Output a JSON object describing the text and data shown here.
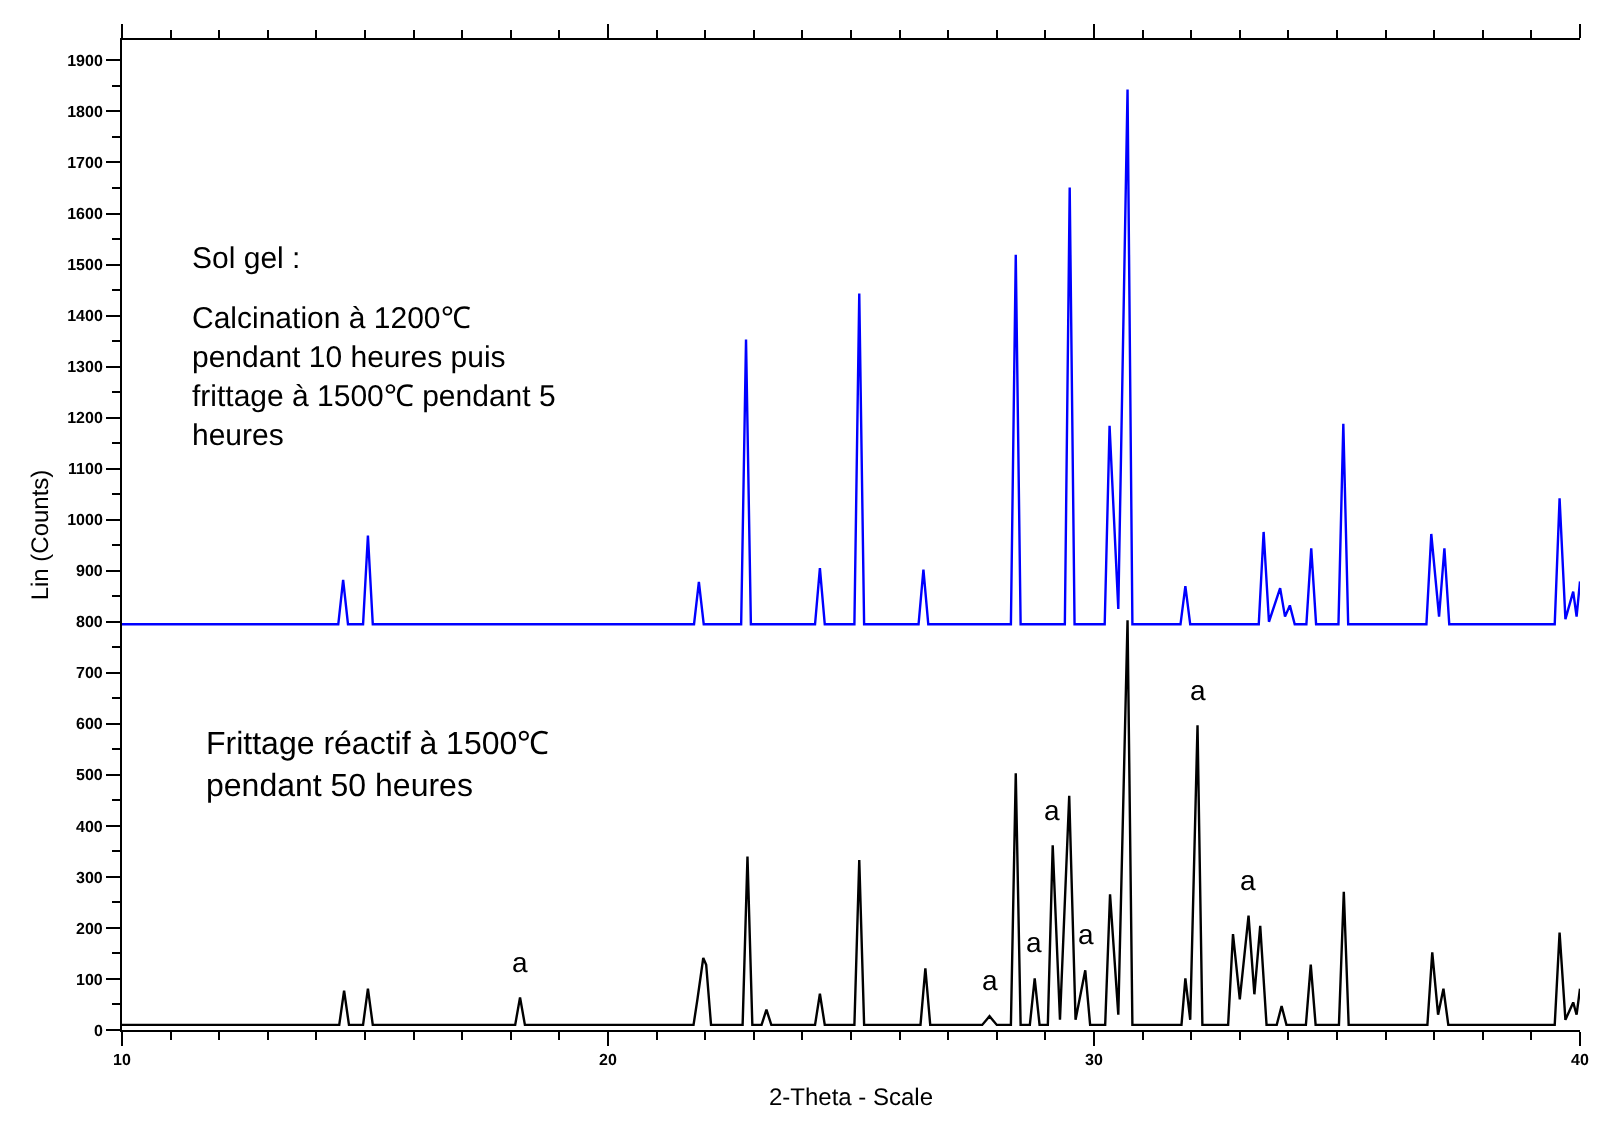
{
  "chart_data": {
    "type": "line",
    "xlabel": "2-Theta - Scale",
    "ylabel": "Lin (Counts)",
    "xlim": [
      10,
      40
    ],
    "ylim": [
      0,
      1940
    ],
    "xticks": [
      10,
      {
        "value": 11,
        "label": null
      },
      {
        "value": 12,
        "label": null
      },
      {
        "value": 13,
        "label": null
      },
      {
        "value": 14,
        "label": null
      },
      {
        "value": 15,
        "label": null
      },
      {
        "value": 16,
        "label": null
      },
      {
        "value": 17,
        "label": null
      },
      {
        "value": 18,
        "label": null
      },
      {
        "value": 19,
        "label": null
      },
      20,
      {
        "value": 21,
        "label": null
      },
      {
        "value": 22,
        "label": null
      },
      {
        "value": 23,
        "label": null
      },
      {
        "value": 24,
        "label": null
      },
      {
        "value": 25,
        "label": null
      },
      {
        "value": 26,
        "label": null
      },
      {
        "value": 27,
        "label": null
      },
      {
        "value": 28,
        "label": null
      },
      {
        "value": 29,
        "label": null
      },
      30,
      {
        "value": 31,
        "label": null
      },
      {
        "value": 32,
        "label": null
      },
      {
        "value": 33,
        "label": null
      },
      {
        "value": 34,
        "label": null
      },
      {
        "value": 35,
        "label": null
      },
      {
        "value": 36,
        "label": null
      },
      {
        "value": 37,
        "label": null
      },
      {
        "value": 38,
        "label": null
      },
      {
        "value": 39,
        "label": null
      },
      40
    ],
    "yticks": [
      0,
      {
        "value": 50,
        "label": null
      },
      100,
      {
        "value": 150,
        "label": null
      },
      200,
      {
        "value": 250,
        "label": null
      },
      300,
      {
        "value": 350,
        "label": null
      },
      400,
      {
        "value": 450,
        "label": null
      },
      500,
      {
        "value": 550,
        "label": null
      },
      600,
      {
        "value": 650,
        "label": null
      },
      700,
      {
        "value": 750,
        "label": null
      },
      800,
      {
        "value": 850,
        "label": null
      },
      900,
      {
        "value": 950,
        "label": null
      },
      1000,
      {
        "value": 1050,
        "label": null
      },
      1100,
      {
        "value": 1150,
        "label": null
      },
      1200,
      {
        "value": 1250,
        "label": null
      },
      1300,
      {
        "value": 1350,
        "label": null
      },
      1400,
      {
        "value": 1450,
        "label": null
      },
      1500,
      {
        "value": 1550,
        "label": null
      },
      1600,
      {
        "value": 1650,
        "label": null
      },
      1700,
      {
        "value": 1750,
        "label": null
      },
      1800,
      {
        "value": 1850,
        "label": null
      },
      1900
    ],
    "marker": "none",
    "line_style": "solid",
    "series": [
      {
        "color": "#0000ff",
        "x": [
          10,
          14.45,
          14.55,
          14.65,
          14.96,
          15.06,
          15.16,
          21.77,
          21.87,
          21.97,
          22.74,
          22.84,
          22.94,
          24.26,
          24.36,
          24.46,
          25.07,
          25.17,
          25.27,
          26.39,
          26.49,
          26.59,
          28.29,
          28.39,
          28.49,
          29.4,
          29.5,
          29.6,
          30.22,
          30.32,
          30.5,
          30.69,
          30.79,
          31.78,
          31.88,
          31.98,
          33.39,
          33.49,
          33.6,
          33.83,
          33.93,
          34.03,
          34.13,
          34.37,
          34.47,
          34.57,
          35.03,
          35.13,
          35.23,
          36.84,
          36.94,
          37.1,
          37.21,
          37.31,
          39.48,
          39.58,
          39.7,
          39.86,
          39.93,
          40
        ],
        "values": [
          795,
          795,
          882,
          795,
          795,
          969,
          795,
          795,
          878,
          795,
          795,
          1353,
          795,
          795,
          905,
          795,
          795,
          1443,
          795,
          795,
          902,
          795,
          795,
          1519,
          795,
          795,
          1651,
          795,
          795,
          1184,
          825,
          1843,
          795,
          795,
          870,
          795,
          795,
          976,
          800,
          866,
          810,
          832,
          795,
          795,
          944,
          795,
          795,
          1188,
          795,
          795,
          972,
          810,
          944,
          795,
          795,
          1042,
          805,
          859,
          810,
          879
        ]
      },
      {
        "color": "#000000",
        "x": [
          10,
          14.47,
          14.57,
          14.67,
          14.96,
          15.06,
          15.16,
          18.09,
          18.19,
          18.29,
          21.76,
          21.84,
          21.96,
          22.02,
          22.12,
          22.77,
          22.87,
          22.97,
          23.16,
          23.26,
          23.36,
          24.26,
          24.36,
          24.46,
          25.07,
          25.17,
          25.27,
          26.43,
          26.53,
          26.63,
          27.7,
          27.85,
          28.0,
          28.29,
          28.39,
          28.49,
          28.68,
          28.78,
          28.88,
          29.05,
          29.15,
          29.3,
          29.49,
          29.62,
          29.82,
          29.92,
          30.23,
          30.33,
          30.5,
          30.69,
          30.79,
          31.8,
          31.88,
          31.98,
          32.13,
          32.23,
          32.76,
          32.86,
          33.0,
          33.18,
          33.3,
          33.42,
          33.55,
          33.76,
          33.86,
          33.96,
          34.36,
          34.46,
          34.56,
          35.04,
          35.14,
          35.24,
          36.86,
          36.96,
          37.08,
          37.19,
          37.29,
          39.48,
          39.58,
          39.7,
          39.86,
          39.93,
          40
        ],
        "values": [
          10,
          10,
          77,
          10,
          10,
          81,
          10,
          10,
          64,
          10,
          10,
          60,
          141,
          128,
          10,
          10,
          340,
          10,
          10,
          40,
          10,
          10,
          71,
          10,
          10,
          333,
          10,
          10,
          121,
          10,
          10,
          27,
          10,
          10,
          503,
          10,
          10,
          101,
          10,
          10,
          362,
          20,
          459,
          20,
          117,
          10,
          10,
          266,
          30,
          803,
          10,
          10,
          101,
          20,
          597,
          10,
          10,
          188,
          60,
          224,
          70,
          204,
          10,
          10,
          47,
          10,
          10,
          128,
          10,
          10,
          271,
          10,
          10,
          152,
          30,
          81,
          10,
          10,
          191,
          20,
          54,
          30,
          81
        ]
      }
    ],
    "annotations": [
      "Sol gel :",
      "Calcination à 1200℃\npendant 10 heures puis\nfrittage à 1500℃ pendant 5\nheures",
      "Frittage réactif à 1500℃\npendant 50 heures",
      {
        "text": "a",
        "x": 18.19,
        "y": 64
      },
      {
        "text": "a",
        "x": 27.85,
        "y": 27
      },
      {
        "text": "a",
        "x": 28.78,
        "y": 101
      },
      {
        "text": "a",
        "x": 29.15,
        "y": 362
      },
      {
        "text": "a",
        "x": 29.82,
        "y": 117
      },
      {
        "text": "a",
        "x": 32.13,
        "y": 597
      },
      {
        "text": "a",
        "x": 33.18,
        "y": 224
      }
    ]
  }
}
